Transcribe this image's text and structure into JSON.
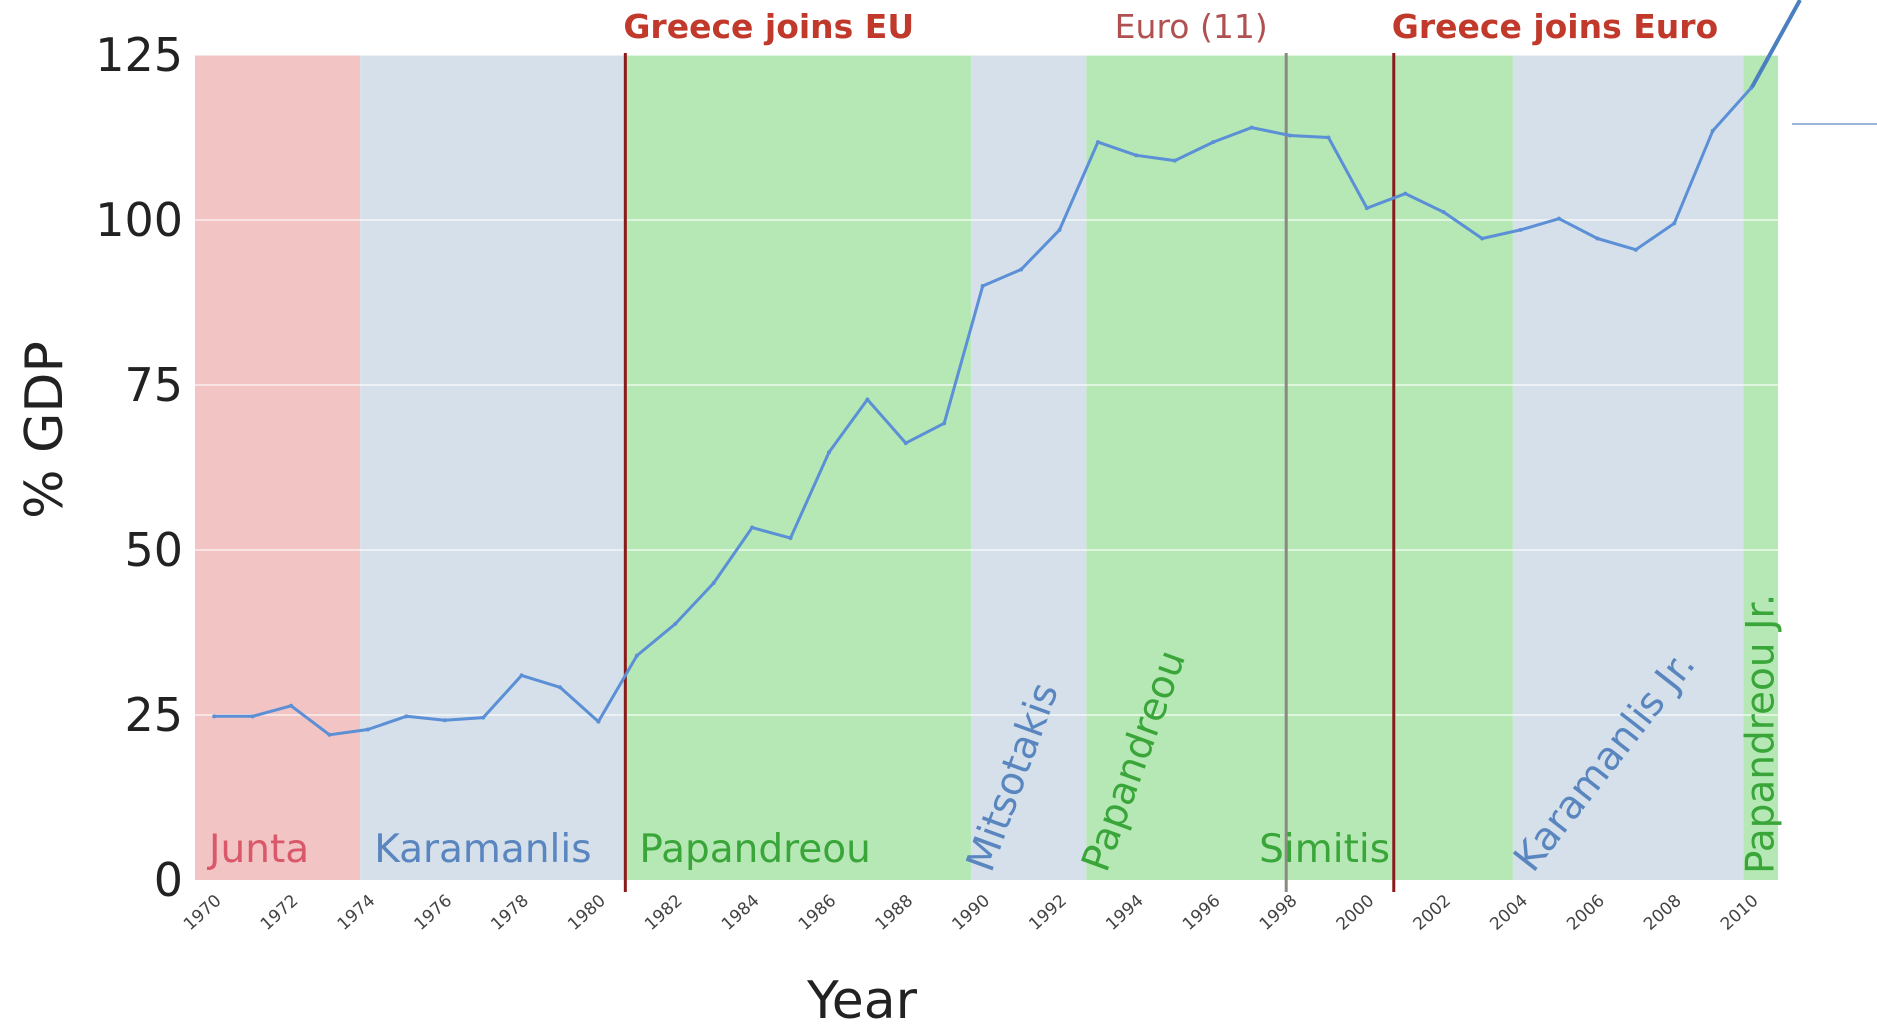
{
  "chart_data": {
    "type": "line",
    "title": "",
    "xlabel": "Year",
    "ylabel": "% GDP",
    "xlim": [
      1969.5,
      2010.7
    ],
    "ylim": [
      0,
      125
    ],
    "yticks": [
      0,
      25,
      50,
      75,
      100,
      125
    ],
    "xticks": [
      1970,
      1972,
      1974,
      1976,
      1978,
      1980,
      1982,
      1984,
      1986,
      1988,
      1990,
      1992,
      1994,
      1996,
      1998,
      2000,
      2002,
      2004,
      2006,
      2008,
      2010
    ],
    "grid": true,
    "line_color": "#5b8fd6",
    "series": [
      {
        "x": [
          1970,
          1971,
          1972,
          1973,
          1974,
          1975,
          1976,
          1977,
          1978,
          1979,
          1980,
          1981,
          1982,
          1983,
          1984,
          1985,
          1986,
          1987,
          1988,
          1989,
          1990,
          1991,
          1992,
          1993,
          1994,
          1995,
          1996,
          1997,
          1998,
          1999,
          2000,
          2001,
          2002,
          2003,
          2004,
          2005,
          2006,
          2007,
          2008,
          2009,
          2010
        ],
        "values": [
          24.8,
          24.8,
          26.4,
          22.0,
          22.8,
          24.8,
          24.2,
          24.6,
          31.0,
          29.2,
          24.0,
          34.0,
          38.8,
          45.0,
          53.4,
          51.8,
          64.8,
          72.8,
          66.2,
          69.2,
          90.0,
          92.5,
          98.5,
          111.8,
          109.8,
          109.0,
          111.8,
          114.0,
          112.8,
          112.5,
          101.8,
          104.0,
          101.2,
          97.2,
          98.5,
          100.2,
          97.2,
          95.5,
          99.5,
          113.5,
          120.0
        ]
      }
    ],
    "periods": [
      {
        "label": "Junta",
        "start": 1969.5,
        "end": 1973.8,
        "color": "#f2c4c4",
        "text_color": "#d9596b",
        "rotate": 0
      },
      {
        "label": "Karamanlis",
        "start": 1973.8,
        "end": 1980.7,
        "color": "#d5e0ea",
        "text_color": "#5a86bf",
        "rotate": 0
      },
      {
        "label": "Papandreou",
        "start": 1980.7,
        "end": 1989.7,
        "color": "#b5e8b5",
        "text_color": "#3aa63a",
        "rotate": 0
      },
      {
        "label": "Mitsotakis",
        "start": 1989.7,
        "end": 1992.7,
        "color": "#d5e0ea",
        "text_color": "#5a86bf",
        "rotate": -70
      },
      {
        "label": "Papandreou",
        "start": 1992.7,
        "end": 2003.8,
        "color": "#b5e8b5",
        "text_color": "#3aa63a",
        "rotate": -70
      },
      {
        "label": "Karamanlis Jr.",
        "start": 2003.8,
        "end": 2009.8,
        "color": "#d5e0ea",
        "text_color": "#5a86bf",
        "rotate": -52
      },
      {
        "label": "Papandreou Jr.",
        "start": 2009.8,
        "end": 2010.7,
        "color": "#b5e8b5",
        "text_color": "#3aa63a",
        "rotate": -90
      }
    ],
    "extra_labels": [
      {
        "label": "Simitis",
        "x": 1998.9,
        "text_color": "#3aa63a"
      }
    ],
    "events": [
      {
        "label": "Greece joins EU",
        "x": 1980.7,
        "color": "#8b1a1a",
        "text_color": "#c0392b"
      },
      {
        "label": "Euro (11)",
        "x": 1997.9,
        "color": "#8a8a80",
        "text_color": "#b05050"
      },
      {
        "label": "Greece joins Euro",
        "x": 2000.7,
        "color": "#8b1a1a",
        "text_color": "#c0392b"
      }
    ]
  }
}
